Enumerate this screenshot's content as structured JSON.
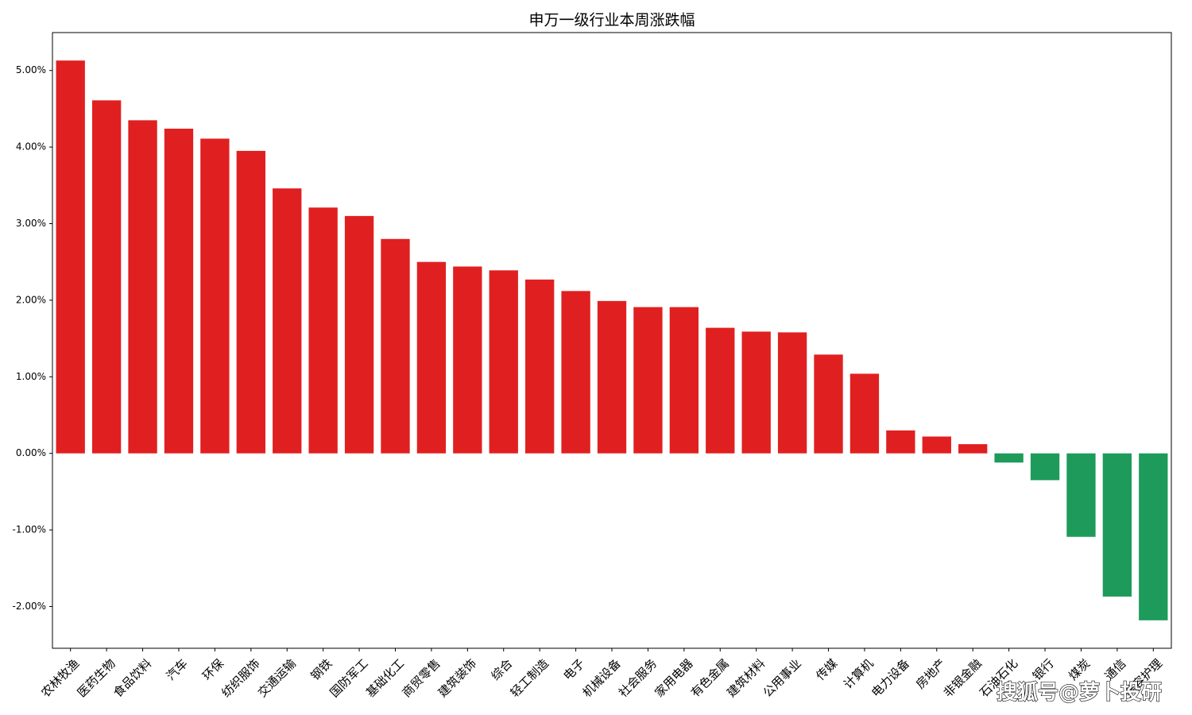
{
  "chart_data": {
    "type": "bar",
    "title": "申万一级行业本周涨跌幅",
    "categories": [
      "农林牧渔",
      "医药生物",
      "食品饮料",
      "汽车",
      "环保",
      "纺织服饰",
      "交通运输",
      "钢铁",
      "国防军工",
      "基础化工",
      "商贸零售",
      "建筑装饰",
      "综合",
      "轻工制造",
      "电子",
      "机械设备",
      "社会服务",
      "家用电器",
      "有色金属",
      "建筑材料",
      "公用事业",
      "传媒",
      "计算机",
      "电力设备",
      "房地产",
      "非银金融",
      "石油石化",
      "银行",
      "煤炭",
      "通信",
      "美容护理"
    ],
    "values": [
      5.13,
      4.61,
      4.35,
      4.24,
      4.11,
      3.95,
      3.46,
      3.21,
      3.1,
      2.8,
      2.5,
      2.44,
      2.39,
      2.27,
      2.12,
      1.99,
      1.91,
      1.91,
      1.64,
      1.59,
      1.58,
      1.29,
      1.04,
      0.3,
      0.22,
      0.12,
      -0.12,
      -0.35,
      -1.09,
      -1.87,
      -2.18
    ],
    "positive_color": "#e02020",
    "negative_color": "#1e9b5a",
    "ylim": [
      -2.545,
      5.495
    ],
    "yticks": [
      {
        "value": -2,
        "label": "-2.00%"
      },
      {
        "value": -1,
        "label": "-1.00%"
      },
      {
        "value": 0,
        "label": "0.00%"
      },
      {
        "value": 1,
        "label": "1.00%"
      },
      {
        "value": 2,
        "label": "2.00%"
      },
      {
        "value": 3,
        "label": "3.00%"
      },
      {
        "value": 4,
        "label": "4.00%"
      },
      {
        "value": 5,
        "label": "5.00%"
      }
    ],
    "grid": false,
    "watermark": "搜狐号@萝卜投研"
  }
}
